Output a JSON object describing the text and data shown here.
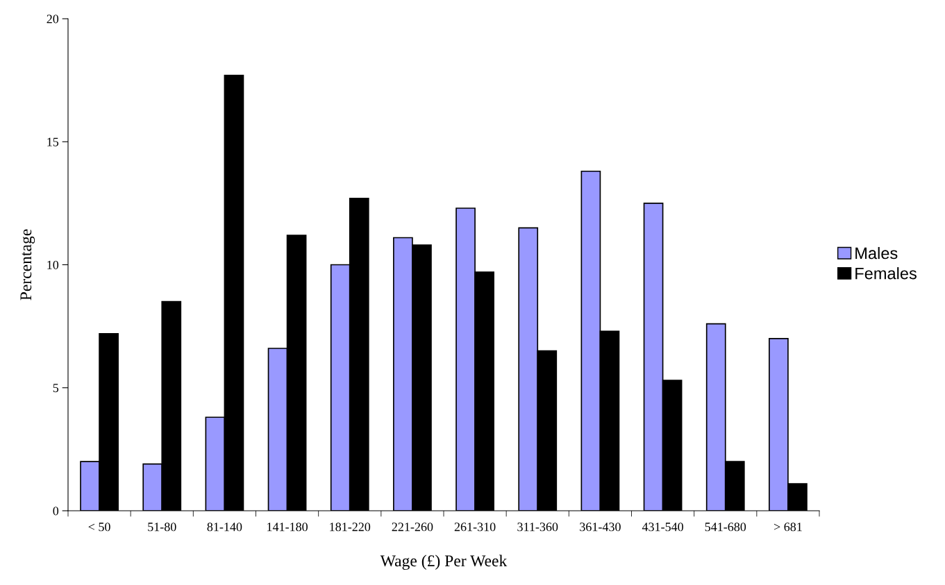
{
  "chart_data": {
    "type": "bar",
    "xlabel": "Wage (£) Per Week",
    "ylabel": "Percentage",
    "categories": [
      "< 50",
      "51-80",
      "81-140",
      "141-180",
      "181-220",
      "221-260",
      "261-310",
      "311-360",
      "361-430",
      "431-540",
      "541-680",
      "> 681"
    ],
    "series": [
      {
        "name": "Males",
        "color": "#9999ff",
        "values": [
          2.0,
          1.9,
          3.8,
          6.6,
          10.0,
          11.1,
          12.3,
          11.5,
          13.8,
          12.5,
          7.6,
          7.0
        ]
      },
      {
        "name": "Females",
        "color": "#000000",
        "values": [
          7.2,
          8.5,
          17.7,
          11.2,
          12.7,
          10.8,
          9.7,
          6.5,
          7.3,
          5.3,
          2.0,
          1.1
        ]
      }
    ],
    "ylim": [
      0,
      20
    ],
    "yticks": [
      0,
      5,
      10,
      15,
      20
    ],
    "grid": false,
    "legend": "right"
  }
}
